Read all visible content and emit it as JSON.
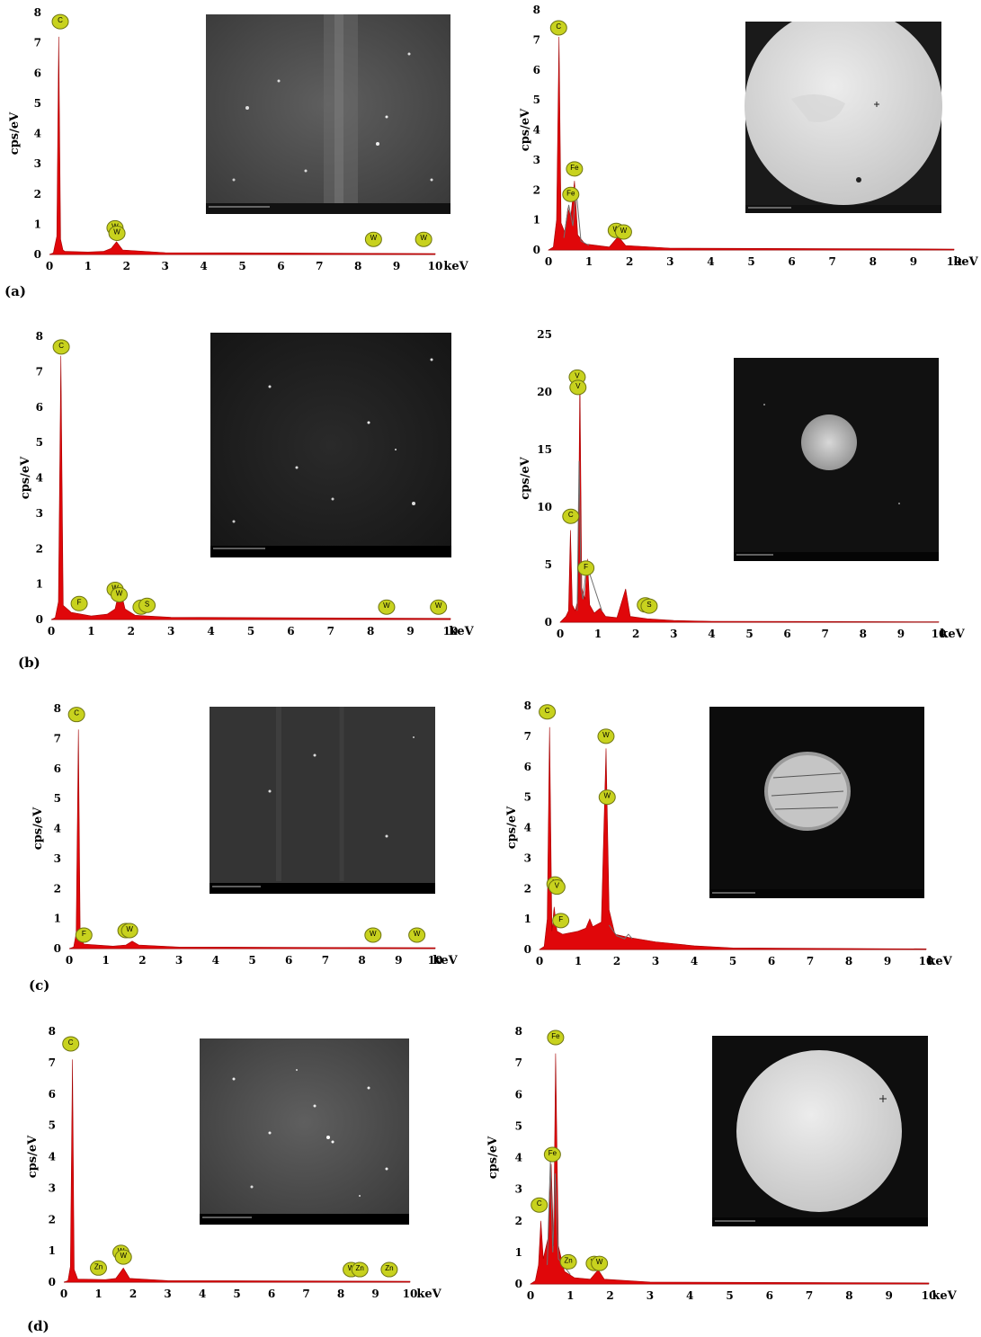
{
  "panel_labels": [
    "(a)",
    "(b)",
    "(c)",
    "(d)"
  ],
  "colors": {
    "spectrum_fill": "#e0070a",
    "marker_fill": "#c8d21e",
    "marker_stroke": "#6e7412",
    "curve": "#6f6f6f"
  },
  "chart_data": [
    {
      "type": "area",
      "id": "a-left",
      "xlabel": "keV",
      "ylabel": "cps/eV",
      "xlim": [
        0,
        10
      ],
      "ylim": [
        0,
        8
      ],
      "xticks": [
        0,
        1,
        2,
        3,
        4,
        5,
        6,
        7,
        8,
        9,
        10
      ],
      "yticks": [
        0,
        1,
        2,
        3,
        4,
        5,
        6,
        7,
        8
      ],
      "spectrum": [
        [
          0,
          0
        ],
        [
          0.1,
          0.05
        ],
        [
          0.19,
          0.6
        ],
        [
          0.24,
          7.2
        ],
        [
          0.29,
          0.5
        ],
        [
          0.35,
          0.15
        ],
        [
          0.4,
          0.1
        ],
        [
          1.0,
          0.08
        ],
        [
          1.4,
          0.1
        ],
        [
          1.6,
          0.2
        ],
        [
          1.74,
          0.42
        ],
        [
          1.9,
          0.15
        ],
        [
          3,
          0.06
        ],
        [
          10,
          0.03
        ]
      ],
      "markers": [
        {
          "label": "C",
          "x": 0.28,
          "y": 7.7
        },
        {
          "label": "W",
          "x": 1.7,
          "y": 0.88
        },
        {
          "label": "W",
          "x": 1.75,
          "y": 0.7
        },
        {
          "label": "W",
          "x": 8.4,
          "y": 0.5
        },
        {
          "label": "W",
          "x": 9.7,
          "y": 0.5
        }
      ]
    },
    {
      "type": "area",
      "id": "a-right",
      "xlabel": "keV",
      "ylabel": "cps/eV",
      "xlim": [
        0,
        10
      ],
      "ylim": [
        0,
        8
      ],
      "xticks": [
        0,
        1,
        2,
        3,
        4,
        5,
        6,
        7,
        8,
        9,
        10
      ],
      "yticks": [
        0,
        1,
        2,
        3,
        4,
        5,
        6,
        7,
        8
      ],
      "spectrum": [
        [
          0,
          0
        ],
        [
          0.12,
          0.1
        ],
        [
          0.2,
          1.0
        ],
        [
          0.26,
          7.1
        ],
        [
          0.31,
          0.9
        ],
        [
          0.4,
          0.6
        ],
        [
          0.48,
          1.4
        ],
        [
          0.55,
          1.1
        ],
        [
          0.64,
          2.3
        ],
        [
          0.72,
          0.5
        ],
        [
          0.9,
          0.2
        ],
        [
          1.5,
          0.1
        ],
        [
          1.72,
          0.45
        ],
        [
          1.9,
          0.15
        ],
        [
          3,
          0.06
        ],
        [
          10,
          0.03
        ]
      ],
      "curve": [
        [
          0.38,
          0.4
        ],
        [
          0.5,
          1.5
        ],
        [
          0.6,
          0.8
        ],
        [
          0.68,
          2.0
        ],
        [
          0.8,
          0.3
        ],
        [
          1.0,
          0.15
        ]
      ],
      "markers": [
        {
          "label": "C",
          "x": 0.25,
          "y": 7.4
        },
        {
          "label": "Fe",
          "x": 0.64,
          "y": 2.7
        },
        {
          "label": "Fe",
          "x": 0.55,
          "y": 1.85
        },
        {
          "label": "W",
          "x": 1.67,
          "y": 0.65
        },
        {
          "label": "W",
          "x": 1.85,
          "y": 0.6
        }
      ]
    },
    {
      "type": "area",
      "id": "b-left",
      "xlabel": "keV",
      "ylabel": "cps/eV",
      "xlim": [
        0,
        10
      ],
      "ylim": [
        0,
        8
      ],
      "xticks": [
        0,
        1,
        2,
        3,
        4,
        5,
        6,
        7,
        8,
        9,
        10
      ],
      "yticks": [
        0,
        1,
        2,
        3,
        4,
        5,
        6,
        7,
        8
      ],
      "spectrum": [
        [
          0,
          0
        ],
        [
          0.1,
          0.05
        ],
        [
          0.18,
          0.5
        ],
        [
          0.24,
          7.45
        ],
        [
          0.3,
          0.4
        ],
        [
          0.4,
          0.3
        ],
        [
          0.5,
          0.2
        ],
        [
          1.0,
          0.1
        ],
        [
          1.4,
          0.15
        ],
        [
          1.6,
          0.3
        ],
        [
          1.72,
          0.9
        ],
        [
          1.85,
          0.3
        ],
        [
          2.1,
          0.12
        ],
        [
          3,
          0.06
        ],
        [
          10,
          0.03
        ]
      ],
      "markers": [
        {
          "label": "C",
          "x": 0.25,
          "y": 7.7
        },
        {
          "label": "F",
          "x": 0.7,
          "y": 0.45
        },
        {
          "label": "W",
          "x": 1.6,
          "y": 0.85
        },
        {
          "label": "W",
          "x": 1.7,
          "y": 0.7
        },
        {
          "label": "S",
          "x": 2.25,
          "y": 0.35
        },
        {
          "label": "S",
          "x": 2.4,
          "y": 0.4
        },
        {
          "label": "W",
          "x": 8.4,
          "y": 0.35
        },
        {
          "label": "W",
          "x": 9.7,
          "y": 0.35
        }
      ]
    },
    {
      "type": "area",
      "id": "b-right",
      "xlabel": "keV",
      "ylabel": "cps/eV",
      "xlim": [
        0,
        10
      ],
      "ylim": [
        0,
        25
      ],
      "xticks": [
        0,
        1,
        2,
        3,
        4,
        5,
        6,
        7,
        8,
        9,
        10
      ],
      "yticks": [
        0,
        5,
        10,
        15,
        20,
        25
      ],
      "spectrum": [
        [
          0,
          0
        ],
        [
          0.15,
          0.5
        ],
        [
          0.22,
          1.0
        ],
        [
          0.27,
          8
        ],
        [
          0.32,
          1.5
        ],
        [
          0.4,
          1.0
        ],
        [
          0.47,
          2.0
        ],
        [
          0.52,
          21.5
        ],
        [
          0.57,
          3.0
        ],
        [
          0.65,
          2.0
        ],
        [
          0.72,
          5.5
        ],
        [
          0.78,
          1.5
        ],
        [
          0.9,
          0.8
        ],
        [
          1.05,
          1.2
        ],
        [
          1.2,
          0.5
        ],
        [
          1.5,
          0.4
        ],
        [
          1.73,
          2.9
        ],
        [
          1.85,
          0.5
        ],
        [
          2.3,
          0.3
        ],
        [
          3,
          0.15
        ],
        [
          4,
          0.08
        ],
        [
          10,
          0.03
        ]
      ],
      "curve": [
        [
          0.45,
          1.0
        ],
        [
          0.5,
          14
        ],
        [
          0.55,
          3
        ],
        [
          0.6,
          2
        ],
        [
          0.7,
          5
        ],
        [
          0.9,
          3
        ],
        [
          1.1,
          1.0
        ]
      ],
      "markers": [
        {
          "label": "V",
          "x": 0.45,
          "y": 21.3
        },
        {
          "label": "V",
          "x": 0.47,
          "y": 20.4
        },
        {
          "label": "C",
          "x": 0.28,
          "y": 9.2
        },
        {
          "label": "F",
          "x": 0.68,
          "y": 4.7
        },
        {
          "label": "S",
          "x": 2.25,
          "y": 1.5
        },
        {
          "label": "S",
          "x": 2.35,
          "y": 1.4
        }
      ]
    },
    {
      "type": "area",
      "id": "c-left",
      "xlabel": "keV",
      "ylabel": "cps/eV",
      "xlim": [
        0,
        10
      ],
      "ylim": [
        0,
        8
      ],
      "xticks": [
        0,
        1,
        2,
        3,
        4,
        5,
        6,
        7,
        8,
        9,
        10
      ],
      "yticks": [
        0,
        1,
        2,
        3,
        4,
        5,
        6,
        7,
        8
      ],
      "spectrum": [
        [
          0,
          0
        ],
        [
          0.12,
          0.05
        ],
        [
          0.19,
          0.5
        ],
        [
          0.25,
          7.3
        ],
        [
          0.3,
          0.4
        ],
        [
          0.4,
          0.15
        ],
        [
          1.2,
          0.08
        ],
        [
          1.55,
          0.12
        ],
        [
          1.72,
          0.25
        ],
        [
          1.9,
          0.12
        ],
        [
          3,
          0.05
        ],
        [
          10,
          0.03
        ]
      ],
      "markers": [
        {
          "label": "C",
          "x": 0.2,
          "y": 7.8
        },
        {
          "label": "F",
          "x": 0.4,
          "y": 0.45
        },
        {
          "label": "W",
          "x": 1.55,
          "y": 0.6
        },
        {
          "label": "W",
          "x": 1.65,
          "y": 0.6
        },
        {
          "label": "W",
          "x": 8.3,
          "y": 0.45
        },
        {
          "label": "W",
          "x": 9.5,
          "y": 0.45
        }
      ]
    },
    {
      "type": "area",
      "id": "c-right",
      "xlabel": "keV",
      "ylabel": "cps/eV",
      "xlim": [
        0,
        10
      ],
      "ylim": [
        0,
        8
      ],
      "xticks": [
        0,
        1,
        2,
        3,
        4,
        5,
        6,
        7,
        8,
        9,
        10
      ],
      "yticks": [
        0,
        1,
        2,
        3,
        4,
        5,
        6,
        7,
        8
      ],
      "spectrum": [
        [
          0,
          0
        ],
        [
          0.12,
          0.1
        ],
        [
          0.2,
          1.0
        ],
        [
          0.26,
          7.3
        ],
        [
          0.32,
          0.6
        ],
        [
          0.38,
          1.4
        ],
        [
          0.45,
          0.6
        ],
        [
          0.6,
          0.5
        ],
        [
          1.0,
          0.6
        ],
        [
          1.2,
          0.7
        ],
        [
          1.3,
          1.0
        ],
        [
          1.38,
          0.75
        ],
        [
          1.6,
          0.9
        ],
        [
          1.72,
          6.6
        ],
        [
          1.8,
          1.3
        ],
        [
          1.95,
          0.5
        ],
        [
          2.3,
          0.4
        ],
        [
          3,
          0.25
        ],
        [
          4,
          0.12
        ],
        [
          5,
          0.05
        ],
        [
          10,
          0.02
        ]
      ],
      "curve": [
        [
          1.8,
          0.8
        ],
        [
          2.0,
          0.45
        ],
        [
          2.2,
          0.35
        ],
        [
          2.3,
          0.5
        ],
        [
          2.4,
          0.35
        ]
      ],
      "markers": [
        {
          "label": "C",
          "x": 0.2,
          "y": 7.8
        },
        {
          "label": "V",
          "x": 0.4,
          "y": 2.15
        },
        {
          "label": "V",
          "x": 0.45,
          "y": 2.05
        },
        {
          "label": "F",
          "x": 0.55,
          "y": 0.95
        },
        {
          "label": "W",
          "x": 1.72,
          "y": 7.0
        },
        {
          "label": "W",
          "x": 1.75,
          "y": 5.0
        }
      ]
    },
    {
      "type": "area",
      "id": "d-left",
      "xlabel": "keV",
      "ylabel": "cps/eV",
      "xlim": [
        0,
        10
      ],
      "ylim": [
        0,
        8
      ],
      "xticks": [
        0,
        1,
        2,
        3,
        4,
        5,
        6,
        7,
        8,
        9,
        10
      ],
      "yticks": [
        0,
        1,
        2,
        3,
        4,
        5,
        6,
        7,
        8
      ],
      "spectrum": [
        [
          0,
          0
        ],
        [
          0.12,
          0.05
        ],
        [
          0.19,
          0.5
        ],
        [
          0.25,
          7.1
        ],
        [
          0.3,
          0.4
        ],
        [
          0.4,
          0.1
        ],
        [
          1.2,
          0.08
        ],
        [
          1.5,
          0.12
        ],
        [
          1.72,
          0.45
        ],
        [
          1.9,
          0.12
        ],
        [
          3,
          0.05
        ],
        [
          10,
          0.03
        ]
      ],
      "markers": [
        {
          "label": "C",
          "x": 0.2,
          "y": 7.6
        },
        {
          "label": "Zn",
          "x": 1.0,
          "y": 0.45
        },
        {
          "label": "W",
          "x": 1.65,
          "y": 0.95
        },
        {
          "label": "W",
          "x": 1.72,
          "y": 0.8
        },
        {
          "label": "W",
          "x": 8.3,
          "y": 0.4
        },
        {
          "label": "Zn",
          "x": 8.55,
          "y": 0.4
        },
        {
          "label": "Zn",
          "x": 9.4,
          "y": 0.4
        }
      ]
    },
    {
      "type": "area",
      "id": "d-right",
      "xlabel": "keV",
      "ylabel": "cps/eV",
      "xlim": [
        0,
        10
      ],
      "ylim": [
        0,
        8
      ],
      "xticks": [
        0,
        1,
        2,
        3,
        4,
        5,
        6,
        7,
        8,
        9,
        10
      ],
      "yticks": [
        0,
        1,
        2,
        3,
        4,
        5,
        6,
        7,
        8
      ],
      "spectrum": [
        [
          0,
          0
        ],
        [
          0.12,
          0.1
        ],
        [
          0.2,
          0.6
        ],
        [
          0.26,
          2.0
        ],
        [
          0.32,
          0.8
        ],
        [
          0.45,
          1.5
        ],
        [
          0.52,
          3.8
        ],
        [
          0.58,
          1.2
        ],
        [
          0.63,
          7.3
        ],
        [
          0.7,
          1.2
        ],
        [
          0.85,
          0.4
        ],
        [
          1.1,
          0.2
        ],
        [
          1.5,
          0.15
        ],
        [
          1.7,
          0.45
        ],
        [
          1.85,
          0.15
        ],
        [
          3,
          0.06
        ],
        [
          10,
          0.03
        ]
      ],
      "curve": [
        [
          0.42,
          0.6
        ],
        [
          0.5,
          3.9
        ],
        [
          0.56,
          1.0
        ],
        [
          0.62,
          3.5
        ],
        [
          0.7,
          0.8
        ],
        [
          1.0,
          0.3
        ]
      ],
      "markers": [
        {
          "label": "Fe",
          "x": 0.63,
          "y": 7.8
        },
        {
          "label": "Fe",
          "x": 0.55,
          "y": 4.1
        },
        {
          "label": "C",
          "x": 0.22,
          "y": 2.5
        },
        {
          "label": "Zn",
          "x": 0.95,
          "y": 0.7
        },
        {
          "label": "W",
          "x": 1.6,
          "y": 0.65
        },
        {
          "label": "W",
          "x": 1.73,
          "y": 0.65
        }
      ]
    }
  ]
}
